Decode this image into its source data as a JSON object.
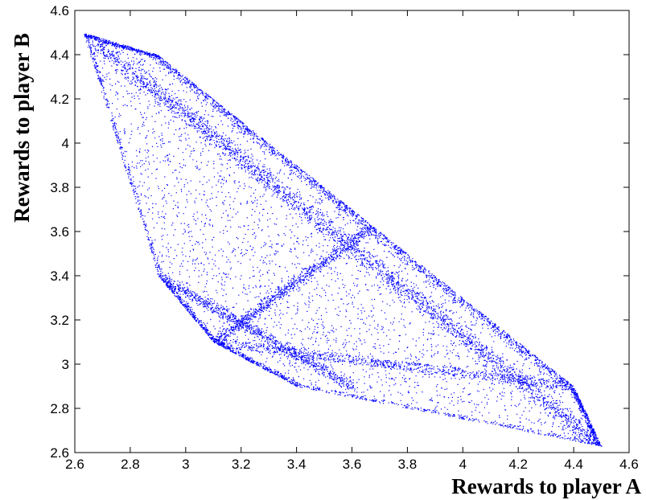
{
  "chart_data": {
    "type": "scatter",
    "title": "",
    "xlabel": "Rewards to player A",
    "ylabel": "Rewards to player B",
    "xlim": [
      2.6,
      4.6
    ],
    "ylim": [
      2.6,
      4.6
    ],
    "xticks": [
      "2.6",
      "2.8",
      "3",
      "3.2",
      "3.4",
      "3.6",
      "3.8",
      "4",
      "4.2",
      "4.4",
      "4.6"
    ],
    "yticks": [
      "2.6",
      "2.8",
      "3",
      "3.2",
      "3.4",
      "3.6",
      "3.8",
      "4",
      "4.2",
      "4.4",
      "4.6"
    ],
    "grid": false,
    "legend": "none",
    "marker_color": "#0000FF",
    "region_outline": [
      [
        2.63,
        4.5
      ],
      [
        2.9,
        4.4
      ],
      [
        4.4,
        2.9
      ],
      [
        4.5,
        2.63
      ],
      [
        3.4,
        2.9
      ],
      [
        3.1,
        3.1
      ],
      [
        2.9,
        3.4
      ]
    ],
    "dense_bands": [
      {
        "from": [
          2.63,
          4.5
        ],
        "to": [
          4.5,
          2.63
        ]
      },
      {
        "from": [
          2.9,
          4.4
        ],
        "to": [
          4.4,
          2.9
        ]
      },
      {
        "from": [
          3.1,
          3.1
        ],
        "to": [
          3.7,
          3.65
        ]
      },
      {
        "from": [
          3.1,
          3.1
        ],
        "to": [
          4.4,
          2.9
        ]
      },
      {
        "from": [
          2.9,
          3.4
        ],
        "to": [
          3.6,
          2.9
        ]
      }
    ]
  }
}
